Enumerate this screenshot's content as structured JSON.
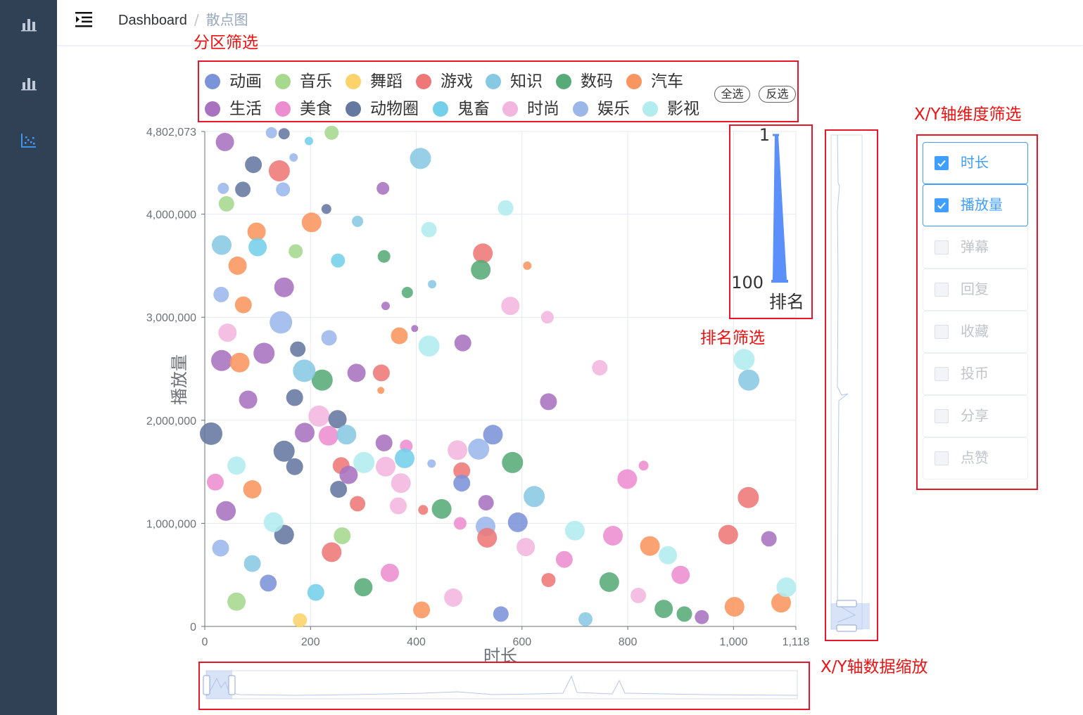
{
  "breadcrumb": {
    "home": "Dashboard",
    "separator": "/",
    "current": "散点图"
  },
  "sidebar": {
    "items": [
      {
        "icon": "bar-chart-icon",
        "active": false
      },
      {
        "icon": "bar-chart-icon",
        "active": false
      },
      {
        "icon": "scatter-chart-icon",
        "active": true
      }
    ]
  },
  "annotations": {
    "category_filter": "分区筛选",
    "rank_filter": "排名筛选",
    "dimension_filter": "X/Y轴维度筛选",
    "zoom": "X/Y轴数据缩放"
  },
  "legend": {
    "items": [
      {
        "label": "动画",
        "color": "#7b93d8"
      },
      {
        "label": "音乐",
        "color": "#a6d88e"
      },
      {
        "label": "舞蹈",
        "color": "#fbd36a"
      },
      {
        "label": "游戏",
        "color": "#ee7777"
      },
      {
        "label": "知识",
        "color": "#87c8e2"
      },
      {
        "label": "数码",
        "color": "#56ab79"
      },
      {
        "label": "汽车",
        "color": "#f9955f"
      },
      {
        "label": "生活",
        "color": "#a872c0"
      },
      {
        "label": "美食",
        "color": "#ec8dd0"
      },
      {
        "label": "动物圈",
        "color": "#6478a0"
      },
      {
        "label": "鬼畜",
        "color": "#74cfea"
      },
      {
        "label": "时尚",
        "color": "#f3b6de"
      },
      {
        "label": "娱乐",
        "color": "#9bb7ea"
      },
      {
        "label": "影视",
        "color": "#b2ecef"
      }
    ],
    "select_all": "全选",
    "invert": "反选"
  },
  "rank_filter": {
    "min_label": "1",
    "max_label": "100",
    "title": "排名",
    "range": [
      1,
      100
    ],
    "color": "#5b8ff9"
  },
  "dimensions": {
    "items": [
      {
        "label": "时长",
        "checked": true
      },
      {
        "label": "播放量",
        "checked": true
      },
      {
        "label": "弹幕",
        "checked": false
      },
      {
        "label": "回复",
        "checked": false
      },
      {
        "label": "收藏",
        "checked": false
      },
      {
        "label": "投币",
        "checked": false
      },
      {
        "label": "分享",
        "checked": false
      },
      {
        "label": "点赞",
        "checked": false
      }
    ]
  },
  "chart_data": {
    "type": "scatter",
    "title": "",
    "xlabel": "时长",
    "ylabel": "播放量",
    "xlim": [
      0,
      1118
    ],
    "ylim": [
      0,
      4802073
    ],
    "x_ticks": [
      "0",
      "200",
      "400",
      "600",
      "800",
      "1,000",
      "1,118"
    ],
    "y_ticks": [
      "0",
      "1,000,000",
      "2,000,000",
      "3,000,000",
      "4,000,000",
      "4,802,073"
    ],
    "grid": true,
    "zoom": {
      "x_range_percent": [
        0,
        5
      ],
      "y_range_percent": [
        0,
        5
      ]
    },
    "points": [
      {
        "s": "生活",
        "x": 38,
        "y": 4700000,
        "r": 13
      },
      {
        "s": "娱乐",
        "x": 126,
        "y": 4790000,
        "r": 8
      },
      {
        "s": "动物圈",
        "x": 150,
        "y": 4780000,
        "r": 8
      },
      {
        "s": "音乐",
        "x": 240,
        "y": 4790000,
        "r": 10
      },
      {
        "s": "鬼畜",
        "x": 197,
        "y": 4710000,
        "r": 6
      },
      {
        "s": "知识",
        "x": 408,
        "y": 4540000,
        "r": 15
      },
      {
        "s": "娱乐",
        "x": 168,
        "y": 4550000,
        "r": 6
      },
      {
        "s": "游戏",
        "x": 141,
        "y": 4420000,
        "r": 15
      },
      {
        "s": "动物圈",
        "x": 92,
        "y": 4480000,
        "r": 12
      },
      {
        "s": "动物圈",
        "x": 72,
        "y": 4240000,
        "r": 11
      },
      {
        "s": "生活",
        "x": 337,
        "y": 4250000,
        "r": 9
      },
      {
        "s": "娱乐",
        "x": 35,
        "y": 4250000,
        "r": 8
      },
      {
        "s": "娱乐",
        "x": 148,
        "y": 4240000,
        "r": 10
      },
      {
        "s": "音乐",
        "x": 41,
        "y": 4100000,
        "r": 11
      },
      {
        "s": "动物圈",
        "x": 230,
        "y": 4050000,
        "r": 7
      },
      {
        "s": "影视",
        "x": 569,
        "y": 4060000,
        "r": 11
      },
      {
        "s": "汽车",
        "x": 202,
        "y": 3920000,
        "r": 14
      },
      {
        "s": "汽车",
        "x": 98,
        "y": 3830000,
        "r": 13
      },
      {
        "s": "知识",
        "x": 289,
        "y": 3930000,
        "r": 8
      },
      {
        "s": "影视",
        "x": 424,
        "y": 3850000,
        "r": 11
      },
      {
        "s": "知识",
        "x": 32,
        "y": 3700000,
        "r": 14
      },
      {
        "s": "鬼畜",
        "x": 100,
        "y": 3680000,
        "r": 13
      },
      {
        "s": "音乐",
        "x": 172,
        "y": 3640000,
        "r": 10
      },
      {
        "s": "游戏",
        "x": 526,
        "y": 3620000,
        "r": 14
      },
      {
        "s": "数码",
        "x": 522,
        "y": 3460000,
        "r": 14
      },
      {
        "s": "数码",
        "x": 339,
        "y": 3590000,
        "r": 9
      },
      {
        "s": "鬼畜",
        "x": 252,
        "y": 3550000,
        "r": 10
      },
      {
        "s": "汽车",
        "x": 610,
        "y": 3500000,
        "r": 6
      },
      {
        "s": "汽车",
        "x": 62,
        "y": 3500000,
        "r": 13
      },
      {
        "s": "生活",
        "x": 150,
        "y": 3290000,
        "r": 14
      },
      {
        "s": "知识",
        "x": 430,
        "y": 3320000,
        "r": 6
      },
      {
        "s": "数码",
        "x": 383,
        "y": 3240000,
        "r": 8
      },
      {
        "s": "娱乐",
        "x": 31,
        "y": 3220000,
        "r": 11
      },
      {
        "s": "汽车",
        "x": 73,
        "y": 3120000,
        "r": 12
      },
      {
        "s": "时尚",
        "x": 578,
        "y": 3110000,
        "r": 13
      },
      {
        "s": "时尚",
        "x": 648,
        "y": 3000000,
        "r": 9
      },
      {
        "s": "生活",
        "x": 342,
        "y": 3110000,
        "r": 6
      },
      {
        "s": "娱乐",
        "x": 144,
        "y": 2950000,
        "r": 16
      },
      {
        "s": "时尚",
        "x": 43,
        "y": 2850000,
        "r": 13
      },
      {
        "s": "汽车",
        "x": 368,
        "y": 2820000,
        "r": 12
      },
      {
        "s": "生活",
        "x": 397,
        "y": 2890000,
        "r": 5
      },
      {
        "s": "娱乐",
        "x": 235,
        "y": 2800000,
        "r": 11
      },
      {
        "s": "影视",
        "x": 424,
        "y": 2720000,
        "r": 15
      },
      {
        "s": "生活",
        "x": 488,
        "y": 2750000,
        "r": 12
      },
      {
        "s": "动物圈",
        "x": 176,
        "y": 2690000,
        "r": 11
      },
      {
        "s": "生活",
        "x": 112,
        "y": 2650000,
        "r": 15
      },
      {
        "s": "生活",
        "x": 32,
        "y": 2580000,
        "r": 15
      },
      {
        "s": "汽车",
        "x": 66,
        "y": 2560000,
        "r": 14
      },
      {
        "s": "时尚",
        "x": 747,
        "y": 2510000,
        "r": 11
      },
      {
        "s": "影视",
        "x": 1020,
        "y": 2590000,
        "r": 15
      },
      {
        "s": "知识",
        "x": 1029,
        "y": 2390000,
        "r": 15
      },
      {
        "s": "数码",
        "x": 222,
        "y": 2390000,
        "r": 15
      },
      {
        "s": "生活",
        "x": 287,
        "y": 2460000,
        "r": 13
      },
      {
        "s": "游戏",
        "x": 334,
        "y": 2460000,
        "r": 12
      },
      {
        "s": "知识",
        "x": 188,
        "y": 2480000,
        "r": 16
      },
      {
        "s": "汽车",
        "x": 333,
        "y": 2290000,
        "r": 5
      },
      {
        "s": "生活",
        "x": 650,
        "y": 2180000,
        "r": 12
      },
      {
        "s": "动物圈",
        "x": 170,
        "y": 2220000,
        "r": 12
      },
      {
        "s": "生活",
        "x": 82,
        "y": 2200000,
        "r": 13
      },
      {
        "s": "时尚",
        "x": 216,
        "y": 2040000,
        "r": 15
      },
      {
        "s": "动物圈",
        "x": 251,
        "y": 2010000,
        "r": 13
      },
      {
        "s": "美食",
        "x": 234,
        "y": 1850000,
        "r": 14
      },
      {
        "s": "知识",
        "x": 268,
        "y": 1860000,
        "r": 14
      },
      {
        "s": "动画",
        "x": 545,
        "y": 1860000,
        "r": 14
      },
      {
        "s": "动物圈",
        "x": 12,
        "y": 1870000,
        "r": 16
      },
      {
        "s": "生活",
        "x": 189,
        "y": 1880000,
        "r": 14
      },
      {
        "s": "生活",
        "x": 339,
        "y": 1780000,
        "r": 12
      },
      {
        "s": "美食",
        "x": 381,
        "y": 1750000,
        "r": 9
      },
      {
        "s": "时尚",
        "x": 478,
        "y": 1710000,
        "r": 14
      },
      {
        "s": "娱乐",
        "x": 518,
        "y": 1720000,
        "r": 15
      },
      {
        "s": "动物圈",
        "x": 150,
        "y": 1700000,
        "r": 15
      },
      {
        "s": "鬼畜",
        "x": 378,
        "y": 1630000,
        "r": 14
      },
      {
        "s": "影视",
        "x": 301,
        "y": 1590000,
        "r": 15
      },
      {
        "s": "数码",
        "x": 582,
        "y": 1590000,
        "r": 15
      },
      {
        "s": "娱乐",
        "x": 429,
        "y": 1580000,
        "r": 6
      },
      {
        "s": "游戏",
        "x": 486,
        "y": 1510000,
        "r": 12
      },
      {
        "s": "美食",
        "x": 830,
        "y": 1560000,
        "r": 7
      },
      {
        "s": "时尚",
        "x": 342,
        "y": 1550000,
        "r": 14
      },
      {
        "s": "游戏",
        "x": 258,
        "y": 1560000,
        "r": 12
      },
      {
        "s": "生活",
        "x": 272,
        "y": 1470000,
        "r": 13
      },
      {
        "s": "美食",
        "x": 799,
        "y": 1430000,
        "r": 14
      },
      {
        "s": "动画",
        "x": 486,
        "y": 1390000,
        "r": 12
      },
      {
        "s": "时尚",
        "x": 371,
        "y": 1390000,
        "r": 14
      },
      {
        "s": "动物圈",
        "x": 253,
        "y": 1330000,
        "r": 12
      },
      {
        "s": "知识",
        "x": 623,
        "y": 1260000,
        "r": 15
      },
      {
        "s": "游戏",
        "x": 1028,
        "y": 1250000,
        "r": 15
      },
      {
        "s": "数码",
        "x": 448,
        "y": 1140000,
        "r": 14
      },
      {
        "s": "游戏",
        "x": 289,
        "y": 1190000,
        "r": 11
      },
      {
        "s": "生活",
        "x": 532,
        "y": 1200000,
        "r": 11
      },
      {
        "s": "时尚",
        "x": 366,
        "y": 1170000,
        "r": 12
      },
      {
        "s": "游戏",
        "x": 413,
        "y": 1130000,
        "r": 7
      },
      {
        "s": "动画",
        "x": 592,
        "y": 1010000,
        "r": 14
      },
      {
        "s": "娱乐",
        "x": 531,
        "y": 970000,
        "r": 14
      },
      {
        "s": "游戏",
        "x": 990,
        "y": 890000,
        "r": 14
      },
      {
        "s": "生活",
        "x": 1067,
        "y": 850000,
        "r": 11
      },
      {
        "s": "影视",
        "x": 700,
        "y": 930000,
        "r": 14
      },
      {
        "s": "美食",
        "x": 772,
        "y": 880000,
        "r": 14
      },
      {
        "s": "时尚",
        "x": 607,
        "y": 770000,
        "r": 13
      },
      {
        "s": "影视",
        "x": 876,
        "y": 690000,
        "r": 13
      },
      {
        "s": "汽车",
        "x": 842,
        "y": 780000,
        "r": 14
      },
      {
        "s": "美食",
        "x": 900,
        "y": 500000,
        "r": 13
      },
      {
        "s": "数码",
        "x": 765,
        "y": 430000,
        "r": 14
      },
      {
        "s": "汽车",
        "x": 1090,
        "y": 230000,
        "r": 14
      },
      {
        "s": "影视",
        "x": 1100,
        "y": 380000,
        "r": 14
      },
      {
        "s": "汽车",
        "x": 1002,
        "y": 190000,
        "r": 14
      },
      {
        "s": "数码",
        "x": 868,
        "y": 170000,
        "r": 13
      },
      {
        "s": "数码",
        "x": 907,
        "y": 120000,
        "r": 11
      },
      {
        "s": "美食",
        "x": 680,
        "y": 650000,
        "r": 12
      },
      {
        "s": "游戏",
        "x": 534,
        "y": 860000,
        "r": 14
      },
      {
        "s": "美食",
        "x": 483,
        "y": 1000000,
        "r": 9
      }
    ],
    "dense_points": [
      {
        "s": "动画",
        "x": 120,
        "y": 420000,
        "r": 12
      },
      {
        "s": "音乐",
        "x": 60,
        "y": 240000,
        "r": 13
      },
      {
        "s": "舞蹈",
        "x": 180,
        "y": 60000,
        "r": 10
      },
      {
        "s": "游戏",
        "x": 240,
        "y": 720000,
        "r": 14
      },
      {
        "s": "知识",
        "x": 90,
        "y": 610000,
        "r": 12
      },
      {
        "s": "数码",
        "x": 300,
        "y": 380000,
        "r": 13
      },
      {
        "s": "汽车",
        "x": 410,
        "y": 160000,
        "r": 12
      },
      {
        "s": "生活",
        "x": 40,
        "y": 1120000,
        "r": 14
      },
      {
        "s": "美食",
        "x": 350,
        "y": 520000,
        "r": 13
      },
      {
        "s": "动物圈",
        "x": 150,
        "y": 890000,
        "r": 14
      },
      {
        "s": "鬼畜",
        "x": 210,
        "y": 330000,
        "r": 12
      },
      {
        "s": "时尚",
        "x": 470,
        "y": 280000,
        "r": 13
      },
      {
        "s": "娱乐",
        "x": 30,
        "y": 760000,
        "r": 12
      },
      {
        "s": "影视",
        "x": 130,
        "y": 1010000,
        "r": 14
      },
      {
        "s": "动画",
        "x": 560,
        "y": 120000,
        "r": 11
      },
      {
        "s": "游戏",
        "x": 650,
        "y": 450000,
        "r": 10
      },
      {
        "s": "知识",
        "x": 720,
        "y": 70000,
        "r": 10
      },
      {
        "s": "时尚",
        "x": 820,
        "y": 300000,
        "r": 11
      },
      {
        "s": "生活",
        "x": 940,
        "y": 90000,
        "r": 10
      },
      {
        "s": "音乐",
        "x": 260,
        "y": 880000,
        "r": 12
      },
      {
        "s": "汽车",
        "x": 90,
        "y": 1330000,
        "r": 13
      },
      {
        "s": "影视",
        "x": 60,
        "y": 1560000,
        "r": 13
      },
      {
        "s": "动物圈",
        "x": 170,
        "y": 1550000,
        "r": 12
      },
      {
        "s": "美食",
        "x": 20,
        "y": 1400000,
        "r": 12
      }
    ]
  }
}
